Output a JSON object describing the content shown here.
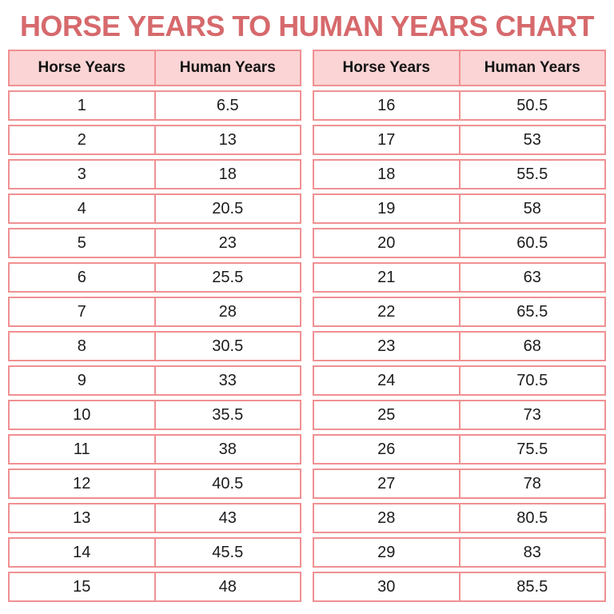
{
  "chart_data": {
    "type": "table",
    "title": "HORSE YEARS TO HUMAN YEARS CHART",
    "columns": [
      "Horse Years",
      "Human Years"
    ],
    "tables": [
      {
        "position": "left",
        "rows": [
          [
            "1",
            "6.5"
          ],
          [
            "2",
            "13"
          ],
          [
            "3",
            "18"
          ],
          [
            "4",
            "20.5"
          ],
          [
            "5",
            "23"
          ],
          [
            "6",
            "25.5"
          ],
          [
            "7",
            "28"
          ],
          [
            "8",
            "30.5"
          ],
          [
            "9",
            "33"
          ],
          [
            "10",
            "35.5"
          ],
          [
            "11",
            "38"
          ],
          [
            "12",
            "40.5"
          ],
          [
            "13",
            "43"
          ],
          [
            "14",
            "45.5"
          ],
          [
            "15",
            "48"
          ]
        ]
      },
      {
        "position": "right",
        "rows": [
          [
            "16",
            "50.5"
          ],
          [
            "17",
            "53"
          ],
          [
            "18",
            "55.5"
          ],
          [
            "19",
            "58"
          ],
          [
            "20",
            "60.5"
          ],
          [
            "21",
            "63"
          ],
          [
            "22",
            "65.5"
          ],
          [
            "23",
            "68"
          ],
          [
            "24",
            "70.5"
          ],
          [
            "25",
            "73"
          ],
          [
            "26",
            "75.5"
          ],
          [
            "27",
            "78"
          ],
          [
            "28",
            "80.5"
          ],
          [
            "29",
            "83"
          ],
          [
            "30",
            "85.5"
          ]
        ]
      }
    ],
    "layout": {
      "legend": "none",
      "grid": "boxed-rows"
    }
  },
  "colors": {
    "title_red": "#d6696c",
    "border_pink": "#f09092",
    "header_bg": "#fbd4d5",
    "cell_bg": "#ffffff",
    "text": "#1c1c1c"
  }
}
